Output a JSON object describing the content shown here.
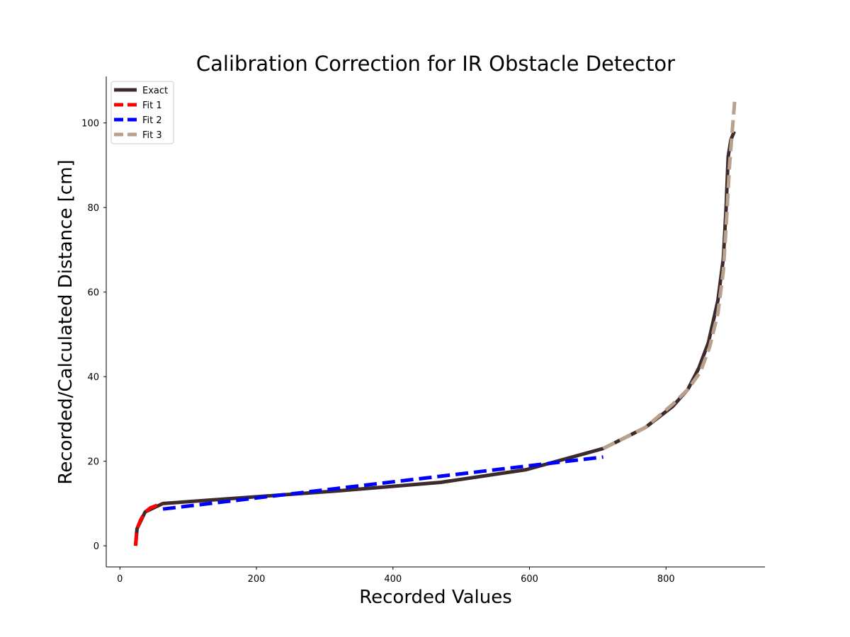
{
  "chart_data": {
    "type": "line",
    "title": "Calibration Correction for IR Obstacle Detector",
    "xlabel": "Recorded Values",
    "ylabel": "Recorded/Calculated Distance [cm]",
    "xlim": [
      -20,
      945
    ],
    "ylim": [
      -5,
      111
    ],
    "xticks": [
      0,
      200,
      400,
      600,
      800
    ],
    "yticks": [
      0,
      20,
      40,
      60,
      80,
      100
    ],
    "grid": false,
    "legend_position": "top-left",
    "series": [
      {
        "name": "Exact",
        "color": "#3d2b2b",
        "style": "solid",
        "x": [
          23,
          25,
          37,
          63,
          320,
          470,
          595,
          708,
          770,
          810,
          832,
          848,
          862,
          876,
          884,
          888,
          891,
          895,
          900
        ],
        "y": [
          0,
          4,
          8,
          10,
          13,
          15,
          18,
          23,
          28,
          33,
          37,
          42,
          48,
          58,
          68,
          80,
          92,
          96,
          98
        ]
      },
      {
        "name": "Fit 1",
        "color": "#ff0000",
        "style": "dashed",
        "x": [
          23,
          25,
          30,
          37,
          45,
          55,
          63
        ],
        "y": [
          0,
          4,
          6,
          8,
          9,
          9.6,
          10
        ]
      },
      {
        "name": "Fit 2",
        "color": "#0000ff",
        "style": "dashed",
        "x": [
          63,
          708
        ],
        "y": [
          8.7,
          21
        ]
      },
      {
        "name": "Fit 3",
        "color": "#b8a08c",
        "style": "dashed",
        "x": [
          708,
          770,
          810,
          832,
          850,
          864,
          876,
          884,
          889,
          893,
          897,
          901
        ],
        "y": [
          23,
          28,
          33.5,
          37,
          41,
          47,
          55,
          65,
          78,
          90,
          98,
          106
        ]
      }
    ]
  }
}
